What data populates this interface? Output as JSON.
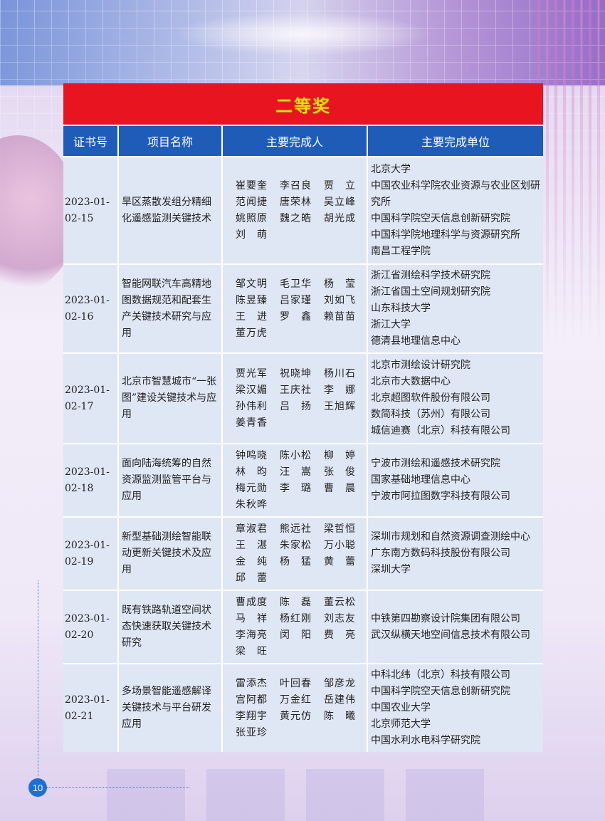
{
  "award_title": "二等奖",
  "headers": [
    "证书号",
    "项目名称",
    "主要完成人",
    "主要完成单位"
  ],
  "page_number": "10",
  "rows": [
    {
      "cert": "2023-01-\n02-15",
      "project": "旱区蒸散发组分精细化遥感监测关键技术",
      "people": [
        "崔要奎",
        "李召良",
        "贾 立",
        "范闻捷",
        "唐荣林",
        "吴立峰",
        "姚照原",
        "魏之皓",
        "胡光成",
        "刘 萌"
      ],
      "units": [
        "北京大学",
        "中国农业科学院农业资源与农业区划研究所",
        "中国科学院空天信息创新研究院",
        "中国科学院地理科学与资源研究所",
        "南昌工程学院"
      ]
    },
    {
      "cert": "2023-01-\n02-16",
      "project": "智能网联汽车高精地图数据规范和配套生产关键技术研究与应用",
      "people": [
        "邹文明",
        "毛卫华",
        "杨 莹",
        "陈昱臻",
        "吕家瑾",
        "刘如飞",
        "王 进",
        "罗 鑫",
        "赖苗苗",
        "董万虎"
      ],
      "units": [
        "浙江省测绘科学技术研究院",
        "浙江省国土空间规划研究院",
        "山东科技大学",
        "浙江大学",
        "德清县地理信息中心"
      ]
    },
    {
      "cert": "2023-01-\n02-17",
      "project": "北京市智慧城市“一张图”建设关键技术与应用",
      "people": [
        "贾光军",
        "祝晓坤",
        "杨川石",
        "梁汉媚",
        "王庆社",
        "李 娜",
        "孙伟利",
        "吕 扬",
        "王旭辉",
        "姜青香"
      ],
      "units": [
        "北京市测绘设计研究院",
        "北京市大数据中心",
        "北京超图软件股份有限公司",
        "数简科技（苏州）有限公司",
        "城信迪赛（北京）科技有限公司"
      ]
    },
    {
      "cert": "2023-01-\n02-18",
      "project": "面向陆海统筹的自然资源监测监管平台与应用",
      "people": [
        "钟鸣晓",
        "陈小松",
        "柳 婷",
        "林 昀",
        "汪 嵩",
        "张 俊",
        "梅元勋",
        "李 璐",
        "曹 晨",
        "朱秋晔"
      ],
      "units": [
        "宁波市测绘和遥感技术研究院",
        "国家基础地理信息中心",
        "宁波市阿拉图数字科技有限公司"
      ]
    },
    {
      "cert": "2023-01-\n02-19",
      "project": "新型基础测绘智能联动更新关键技术及应用",
      "people": [
        "章淑君",
        "熊远社",
        "梁哲恒",
        "王 湛",
        "朱家松",
        "万小聪",
        "金 纯",
        "杨 猛",
        "黄 蕾",
        "邱 蕾"
      ],
      "units": [
        "深圳市规划和自然资源调查测绘中心",
        "广东南方数码科技股份有限公司",
        "深圳大学"
      ]
    },
    {
      "cert": "2023-01-\n02-20",
      "project": "既有铁路轨道空间状态快速获取关键技术研究",
      "people": [
        "曹成度",
        "陈 磊",
        "董云松",
        "马 祥",
        "杨红刚",
        "刘志友",
        "李海亮",
        "闵 阳",
        "费 亮",
        "梁 旺"
      ],
      "units": [
        "中铁第四勘察设计院集团有限公司",
        "武汉纵横天地空间信息技术有限公司"
      ]
    },
    {
      "cert": "2023-01-\n02-21",
      "project": "多场景智能遥感解译关键技术与平台研发应用",
      "people": [
        "雷添杰",
        "叶回春",
        "邹彦龙",
        "宫阿都",
        "万金红",
        "岳建伟",
        "李翔宇",
        "黄元仿",
        "陈 曦",
        "张亚珍"
      ],
      "units": [
        "中科北纬（北京）科技有限公司",
        "中国科学院空天信息创新研究院",
        "中国农业大学",
        "北京师范大学",
        "中国水利水电科学研究院"
      ]
    }
  ]
}
